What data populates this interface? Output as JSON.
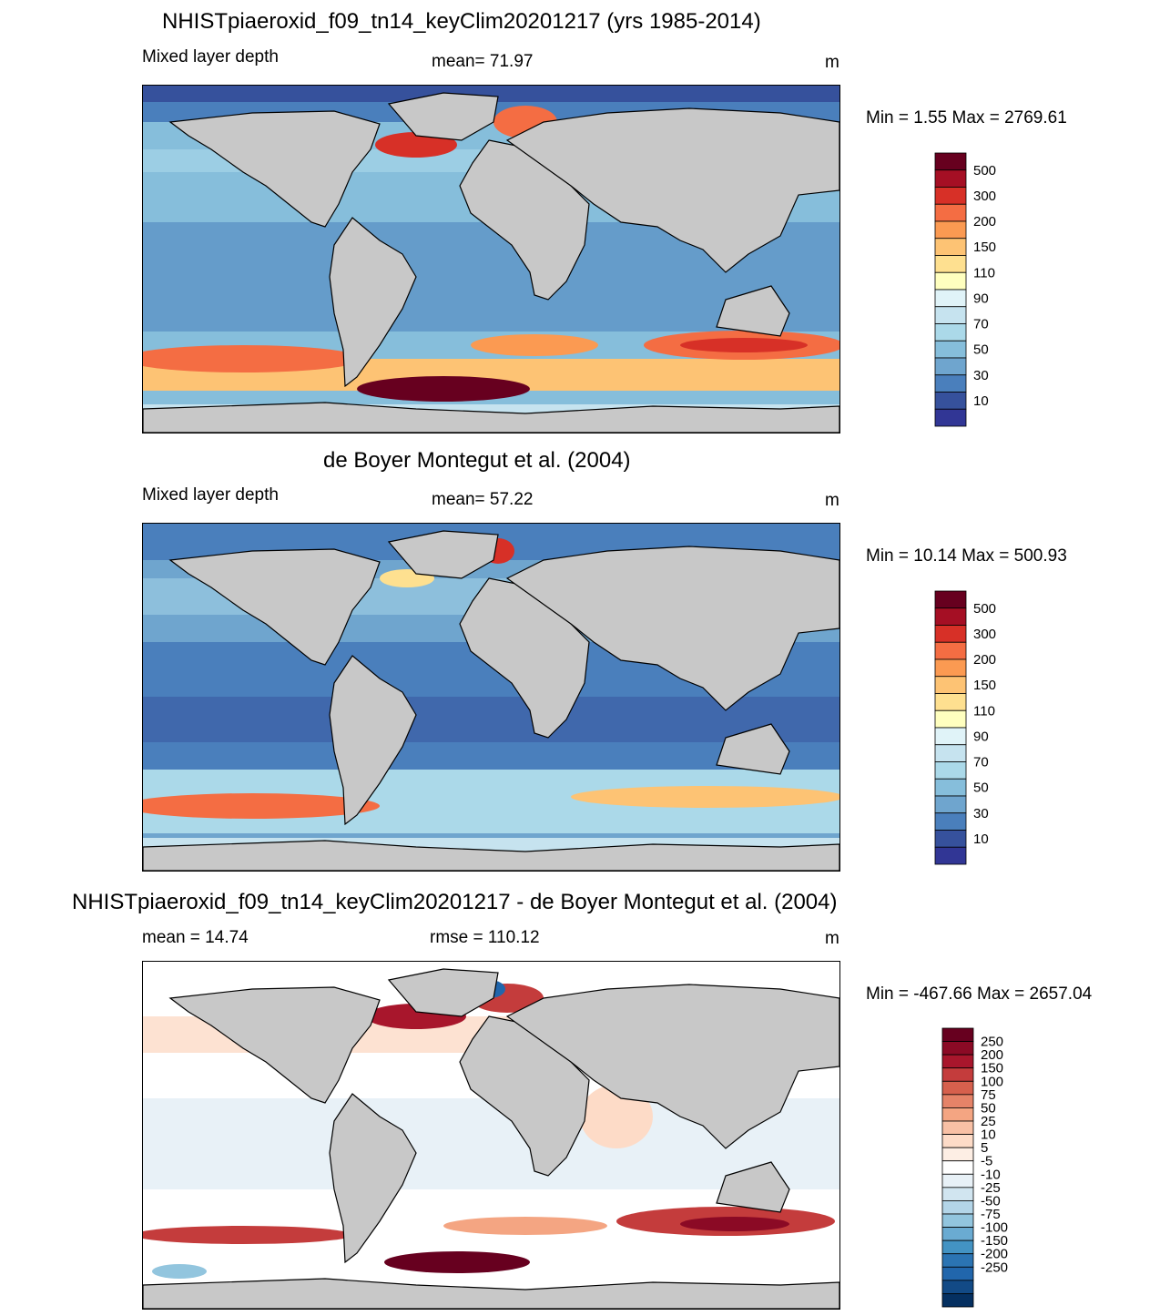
{
  "chart_data": [
    {
      "type": "heatmap",
      "title": "NHISTpiaeroxid_f09_tn14_keyClim20201217 (yrs 1985-2014)",
      "left_label": "Mixed layer depth",
      "center_label": "mean=  71.97",
      "units": "m",
      "minmax": "Min =   1.55 Max = 2769.61",
      "colorbar": {
        "labels": [
          "500",
          "300",
          "200",
          "150",
          "110",
          "90",
          "70",
          "50",
          "30",
          "10"
        ],
        "colors": [
          "#67001f",
          "#a50f24",
          "#d73027",
          "#f46d43",
          "#fb9a52",
          "#fdc374",
          "#fee090",
          "#ffffbf",
          "#e0f3f8",
          "#c6e3ef",
          "#abd9e9",
          "#86bedb",
          "#6fa5ce",
          "#4a7fbc",
          "#36519c",
          "#313695"
        ]
      }
    },
    {
      "type": "heatmap",
      "title": "de Boyer Montegut et al. (2004)",
      "left_label": "Mixed layer depth",
      "center_label": "mean=  57.22",
      "units": "m",
      "minmax": "Min =  10.14 Max = 500.93",
      "colorbar": {
        "labels": [
          "500",
          "300",
          "200",
          "150",
          "110",
          "90",
          "70",
          "50",
          "30",
          "10"
        ],
        "colors": [
          "#67001f",
          "#a50f24",
          "#d73027",
          "#f46d43",
          "#fb9a52",
          "#fdc374",
          "#fee090",
          "#ffffbf",
          "#e0f3f8",
          "#c6e3ef",
          "#abd9e9",
          "#86bedb",
          "#6fa5ce",
          "#4a7fbc",
          "#36519c",
          "#313695"
        ]
      }
    },
    {
      "type": "heatmap",
      "title": "NHISTpiaeroxid_f09_tn14_keyClim20201217 - de Boyer Montegut et al. (2004)",
      "left_label": "mean =  14.74",
      "center_label": "rmse = 110.12",
      "units": "m",
      "minmax": "Min = -467.66 Max = 2657.04",
      "colorbar": {
        "labels": [
          "250",
          "200",
          "150",
          "100",
          "75",
          "50",
          "25",
          "10",
          "5",
          "-5",
          "-10",
          "-25",
          "-50",
          "-75",
          "-100",
          "-150",
          "-200",
          "-250"
        ],
        "colors": [
          "#67001f",
          "#8b0a25",
          "#a8162c",
          "#c43c3c",
          "#d6604d",
          "#e58368",
          "#f4a582",
          "#f8c0a5",
          "#fddbc7",
          "#fdeee4",
          "#ffffff",
          "#e8f1f7",
          "#d1e5f0",
          "#b3d5e8",
          "#92c5de",
          "#6aabd2",
          "#4393c3",
          "#2b74b3",
          "#2166ac",
          "#124a86",
          "#053061"
        ]
      }
    }
  ]
}
